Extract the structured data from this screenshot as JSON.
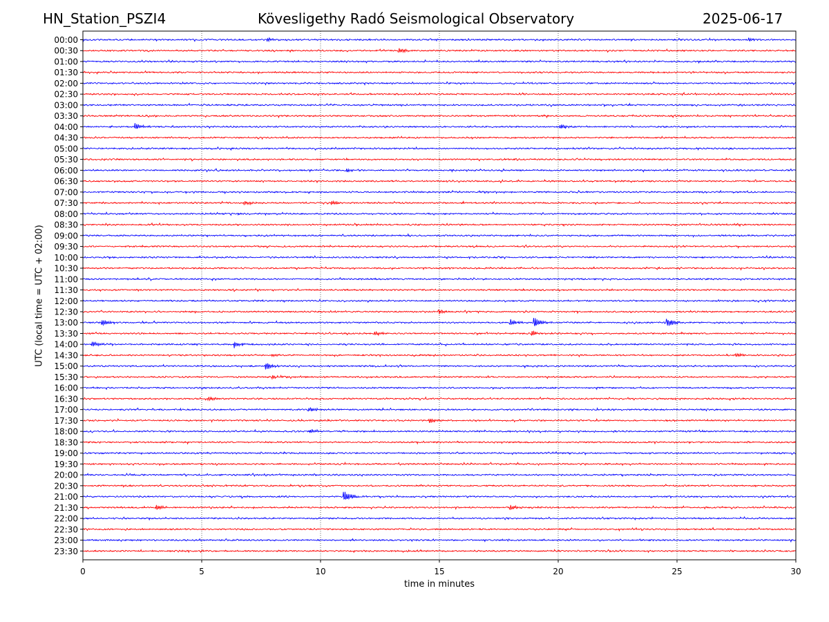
{
  "header": {
    "station": "HN_Station_PSZI4",
    "observatory": "Kövesligethy Radó Seismological Observatory",
    "date": "2025-06-17"
  },
  "chart_data": {
    "type": "line",
    "title": "Kövesligethy Radó Seismological Observatory",
    "xlabel": "time in minutes",
    "ylabel": "UTC (local time = UTC + 02:00)",
    "xlim": [
      0,
      30
    ],
    "xticks": [
      0,
      5,
      10,
      15,
      20,
      25,
      30
    ],
    "grid_x": [
      5,
      10,
      15,
      20,
      25
    ],
    "series_colors": [
      "#0000ff",
      "#ff0000"
    ],
    "rows": [
      "00:00",
      "00:30",
      "01:00",
      "01:30",
      "02:00",
      "02:30",
      "03:00",
      "03:30",
      "04:00",
      "04:30",
      "05:00",
      "05:30",
      "06:00",
      "06:30",
      "07:00",
      "07:30",
      "08:00",
      "08:30",
      "09:00",
      "09:30",
      "10:00",
      "10:30",
      "11:00",
      "11:30",
      "12:00",
      "12:30",
      "13:00",
      "13:30",
      "14:00",
      "14:30",
      "15:00",
      "15:30",
      "16:00",
      "16:30",
      "17:00",
      "17:30",
      "18:00",
      "18:30",
      "19:00",
      "19:30",
      "20:00",
      "20:30",
      "21:00",
      "21:30",
      "22:00",
      "22:30",
      "23:00",
      "23:30"
    ],
    "events": [
      {
        "row": "00:00",
        "t": 7.8,
        "amp": 3
      },
      {
        "row": "00:00",
        "t": 28,
        "amp": 3
      },
      {
        "row": "00:30",
        "t": 13.3,
        "amp": 4
      },
      {
        "row": "04:00",
        "t": 2.2,
        "amp": 6
      },
      {
        "row": "04:00",
        "t": 20.1,
        "amp": 4
      },
      {
        "row": "06:00",
        "t": 11.1,
        "amp": 3
      },
      {
        "row": "07:30",
        "t": 10.5,
        "amp": 4
      },
      {
        "row": "07:30",
        "t": 6.8,
        "amp": 3
      },
      {
        "row": "12:30",
        "t": 15,
        "amp": 4
      },
      {
        "row": "13:00",
        "t": 18,
        "amp": 5
      },
      {
        "row": "13:00",
        "t": 19,
        "amp": 9
      },
      {
        "row": "13:00",
        "t": 24.6,
        "amp": 8
      },
      {
        "row": "13:00",
        "t": 0.8,
        "amp": 5
      },
      {
        "row": "13:30",
        "t": 12.3,
        "amp": 4
      },
      {
        "row": "13:30",
        "t": 18.9,
        "amp": 4
      },
      {
        "row": "14:00",
        "t": 0.4,
        "amp": 5
      },
      {
        "row": "14:00",
        "t": 6.4,
        "amp": 5
      },
      {
        "row": "14:30",
        "t": 8,
        "amp": 2
      },
      {
        "row": "14:30",
        "t": 27.5,
        "amp": 3
      },
      {
        "row": "15:00",
        "t": 7.7,
        "amp": 6
      },
      {
        "row": "15:30",
        "t": 8,
        "amp": 3
      },
      {
        "row": "16:30",
        "t": 5.3,
        "amp": 3
      },
      {
        "row": "17:00",
        "t": 9.5,
        "amp": 4
      },
      {
        "row": "17:30",
        "t": 14.6,
        "amp": 4
      },
      {
        "row": "18:00",
        "t": 9.6,
        "amp": 3
      },
      {
        "row": "21:00",
        "t": 11,
        "amp": 9
      },
      {
        "row": "21:30",
        "t": 18,
        "amp": 4
      },
      {
        "row": "21:30",
        "t": 3.1,
        "amp": 4
      }
    ]
  }
}
